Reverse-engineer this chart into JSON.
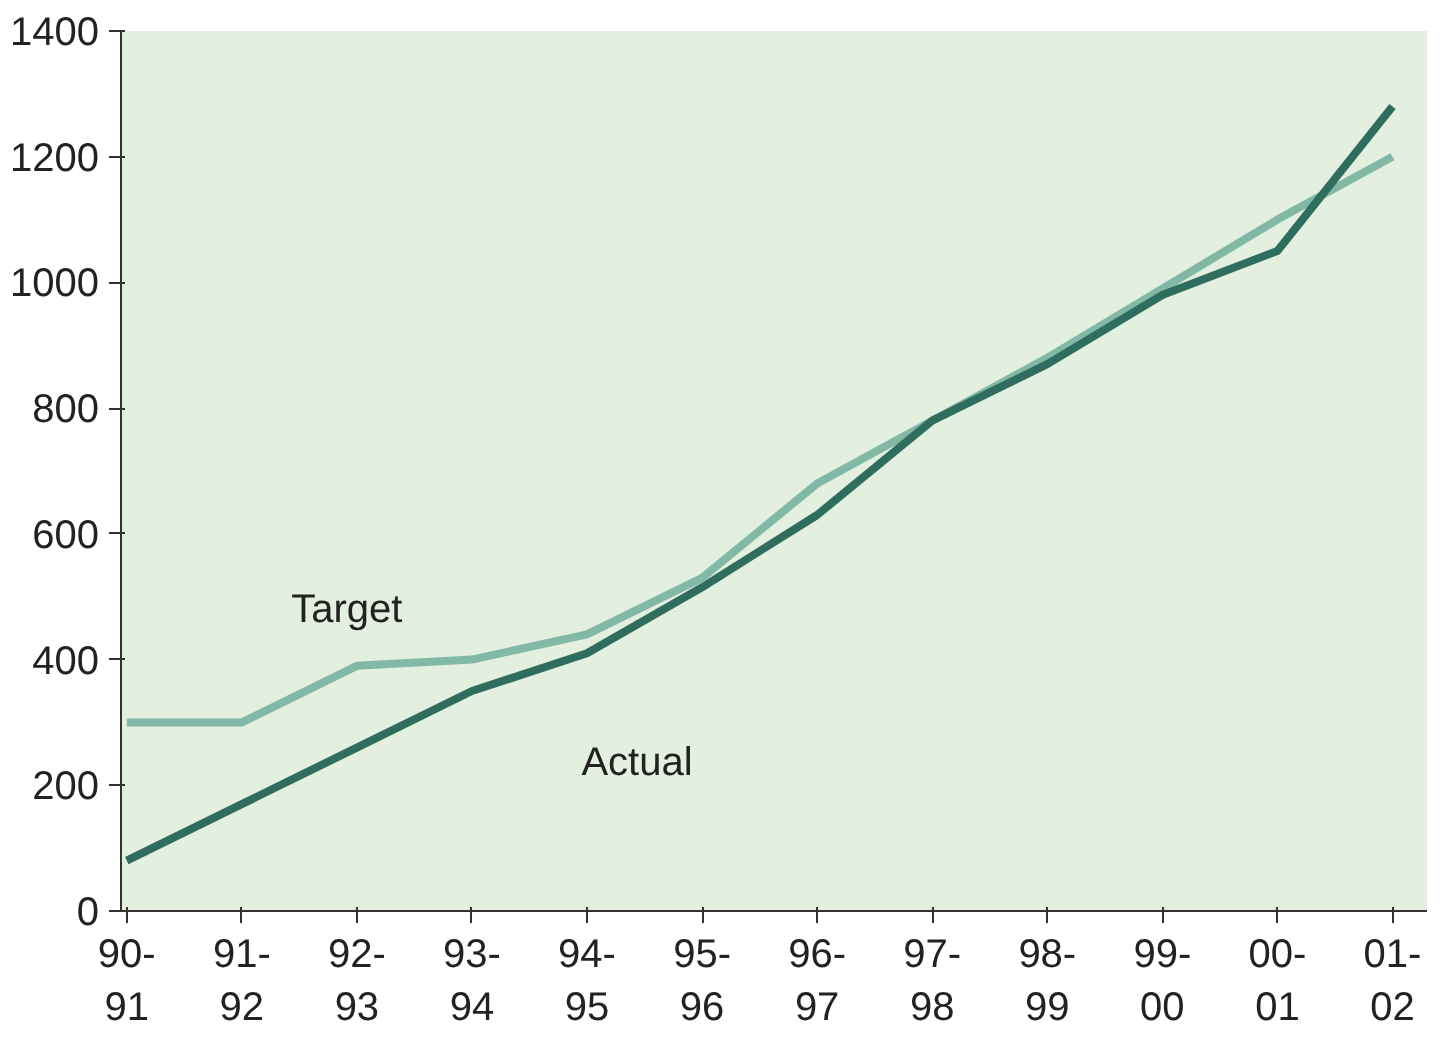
{
  "chart_data": {
    "type": "line",
    "categories": [
      "90-\n91",
      "91-\n92",
      "92-\n93",
      "93-\n94",
      "94-\n95",
      "95-\n96",
      "96-\n97",
      "97-\n98",
      "98-\n99",
      "99-\n00",
      "00-\n01",
      "01-\n02"
    ],
    "series": [
      {
        "name": "Target",
        "color": "#82b8a6",
        "values": [
          300,
          300,
          390,
          400,
          440,
          530,
          680,
          780,
          880,
          990,
          1100,
          1200
        ]
      },
      {
        "name": "Actual",
        "color": "#2f6e5f",
        "values": [
          80,
          170,
          260,
          350,
          410,
          515,
          630,
          780,
          870,
          980,
          1050,
          1280
        ]
      }
    ],
    "ylim": [
      0,
      1400
    ],
    "yticks": [
      0,
      200,
      400,
      600,
      800,
      1000,
      1200,
      1400
    ],
    "grid": false,
    "marker": "none",
    "line_style": "solid"
  }
}
